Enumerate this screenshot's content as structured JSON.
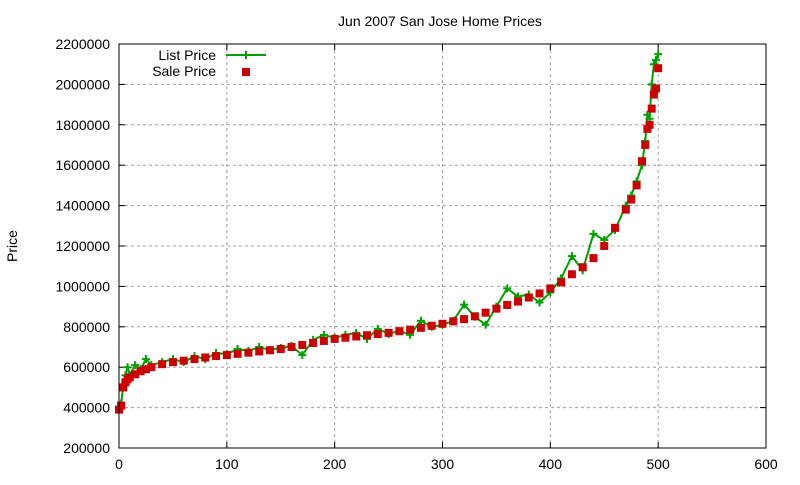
{
  "chart_data": {
    "type": "line",
    "title": "Jun 2007 San Jose Home Prices",
    "xlabel": "",
    "ylabel": "Price",
    "xlim": [
      0,
      600
    ],
    "ylim": [
      200000,
      2200000
    ],
    "xticks": [
      0,
      100,
      200,
      300,
      400,
      500,
      600
    ],
    "yticks": [
      200000,
      400000,
      600000,
      800000,
      1000000,
      1200000,
      1400000,
      1600000,
      1800000,
      2000000,
      2200000
    ],
    "grid": true,
    "legend_position": "top-left",
    "x": [
      0,
      2,
      4,
      6,
      8,
      10,
      15,
      20,
      25,
      30,
      40,
      50,
      60,
      70,
      80,
      90,
      100,
      110,
      120,
      130,
      140,
      150,
      160,
      170,
      180,
      190,
      200,
      210,
      220,
      230,
      240,
      250,
      260,
      270,
      280,
      290,
      300,
      310,
      320,
      330,
      340,
      350,
      360,
      370,
      380,
      390,
      400,
      410,
      420,
      430,
      440,
      450,
      460,
      470,
      475,
      480,
      485,
      488,
      490,
      492,
      494,
      496,
      498,
      500
    ],
    "series": [
      {
        "name": "List Price",
        "style": "linespoints",
        "marker": "plus",
        "color": "#00a000",
        "values": [
          400000,
          420000,
          510000,
          560000,
          600000,
          560000,
          610000,
          590000,
          640000,
          610000,
          625000,
          640000,
          625000,
          655000,
          640000,
          670000,
          665000,
          690000,
          680000,
          700000,
          685000,
          695000,
          705000,
          660000,
          735000,
          760000,
          745000,
          760000,
          770000,
          740000,
          790000,
          765000,
          780000,
          760000,
          830000,
          800000,
          810000,
          830000,
          910000,
          850000,
          810000,
          900000,
          990000,
          950000,
          960000,
          920000,
          970000,
          1040000,
          1150000,
          1080000,
          1260000,
          1230000,
          1280000,
          1400000,
          1450000,
          1520000,
          1600000,
          1720000,
          1850000,
          1830000,
          2000000,
          2100000,
          2120000,
          2150000
        ]
      },
      {
        "name": "Sale Price",
        "style": "points",
        "marker": "square",
        "color": "#cc0000",
        "values": [
          390000,
          410000,
          500000,
          525000,
          540000,
          550000,
          565000,
          580000,
          590000,
          600000,
          615000,
          625000,
          632000,
          640000,
          648000,
          655000,
          660000,
          666000,
          672000,
          678000,
          684000,
          690000,
          700000,
          710000,
          720000,
          730000,
          740000,
          746000,
          752000,
          758000,
          764000,
          770000,
          778000,
          786000,
          795000,
          805000,
          815000,
          827000,
          838000,
          852000,
          870000,
          890000,
          908000,
          925000,
          945000,
          965000,
          990000,
          1020000,
          1060000,
          1095000,
          1140000,
          1200000,
          1290000,
          1380000,
          1430000,
          1500000,
          1620000,
          1700000,
          1780000,
          1800000,
          1880000,
          1950000,
          1980000,
          2080000
        ]
      }
    ]
  }
}
